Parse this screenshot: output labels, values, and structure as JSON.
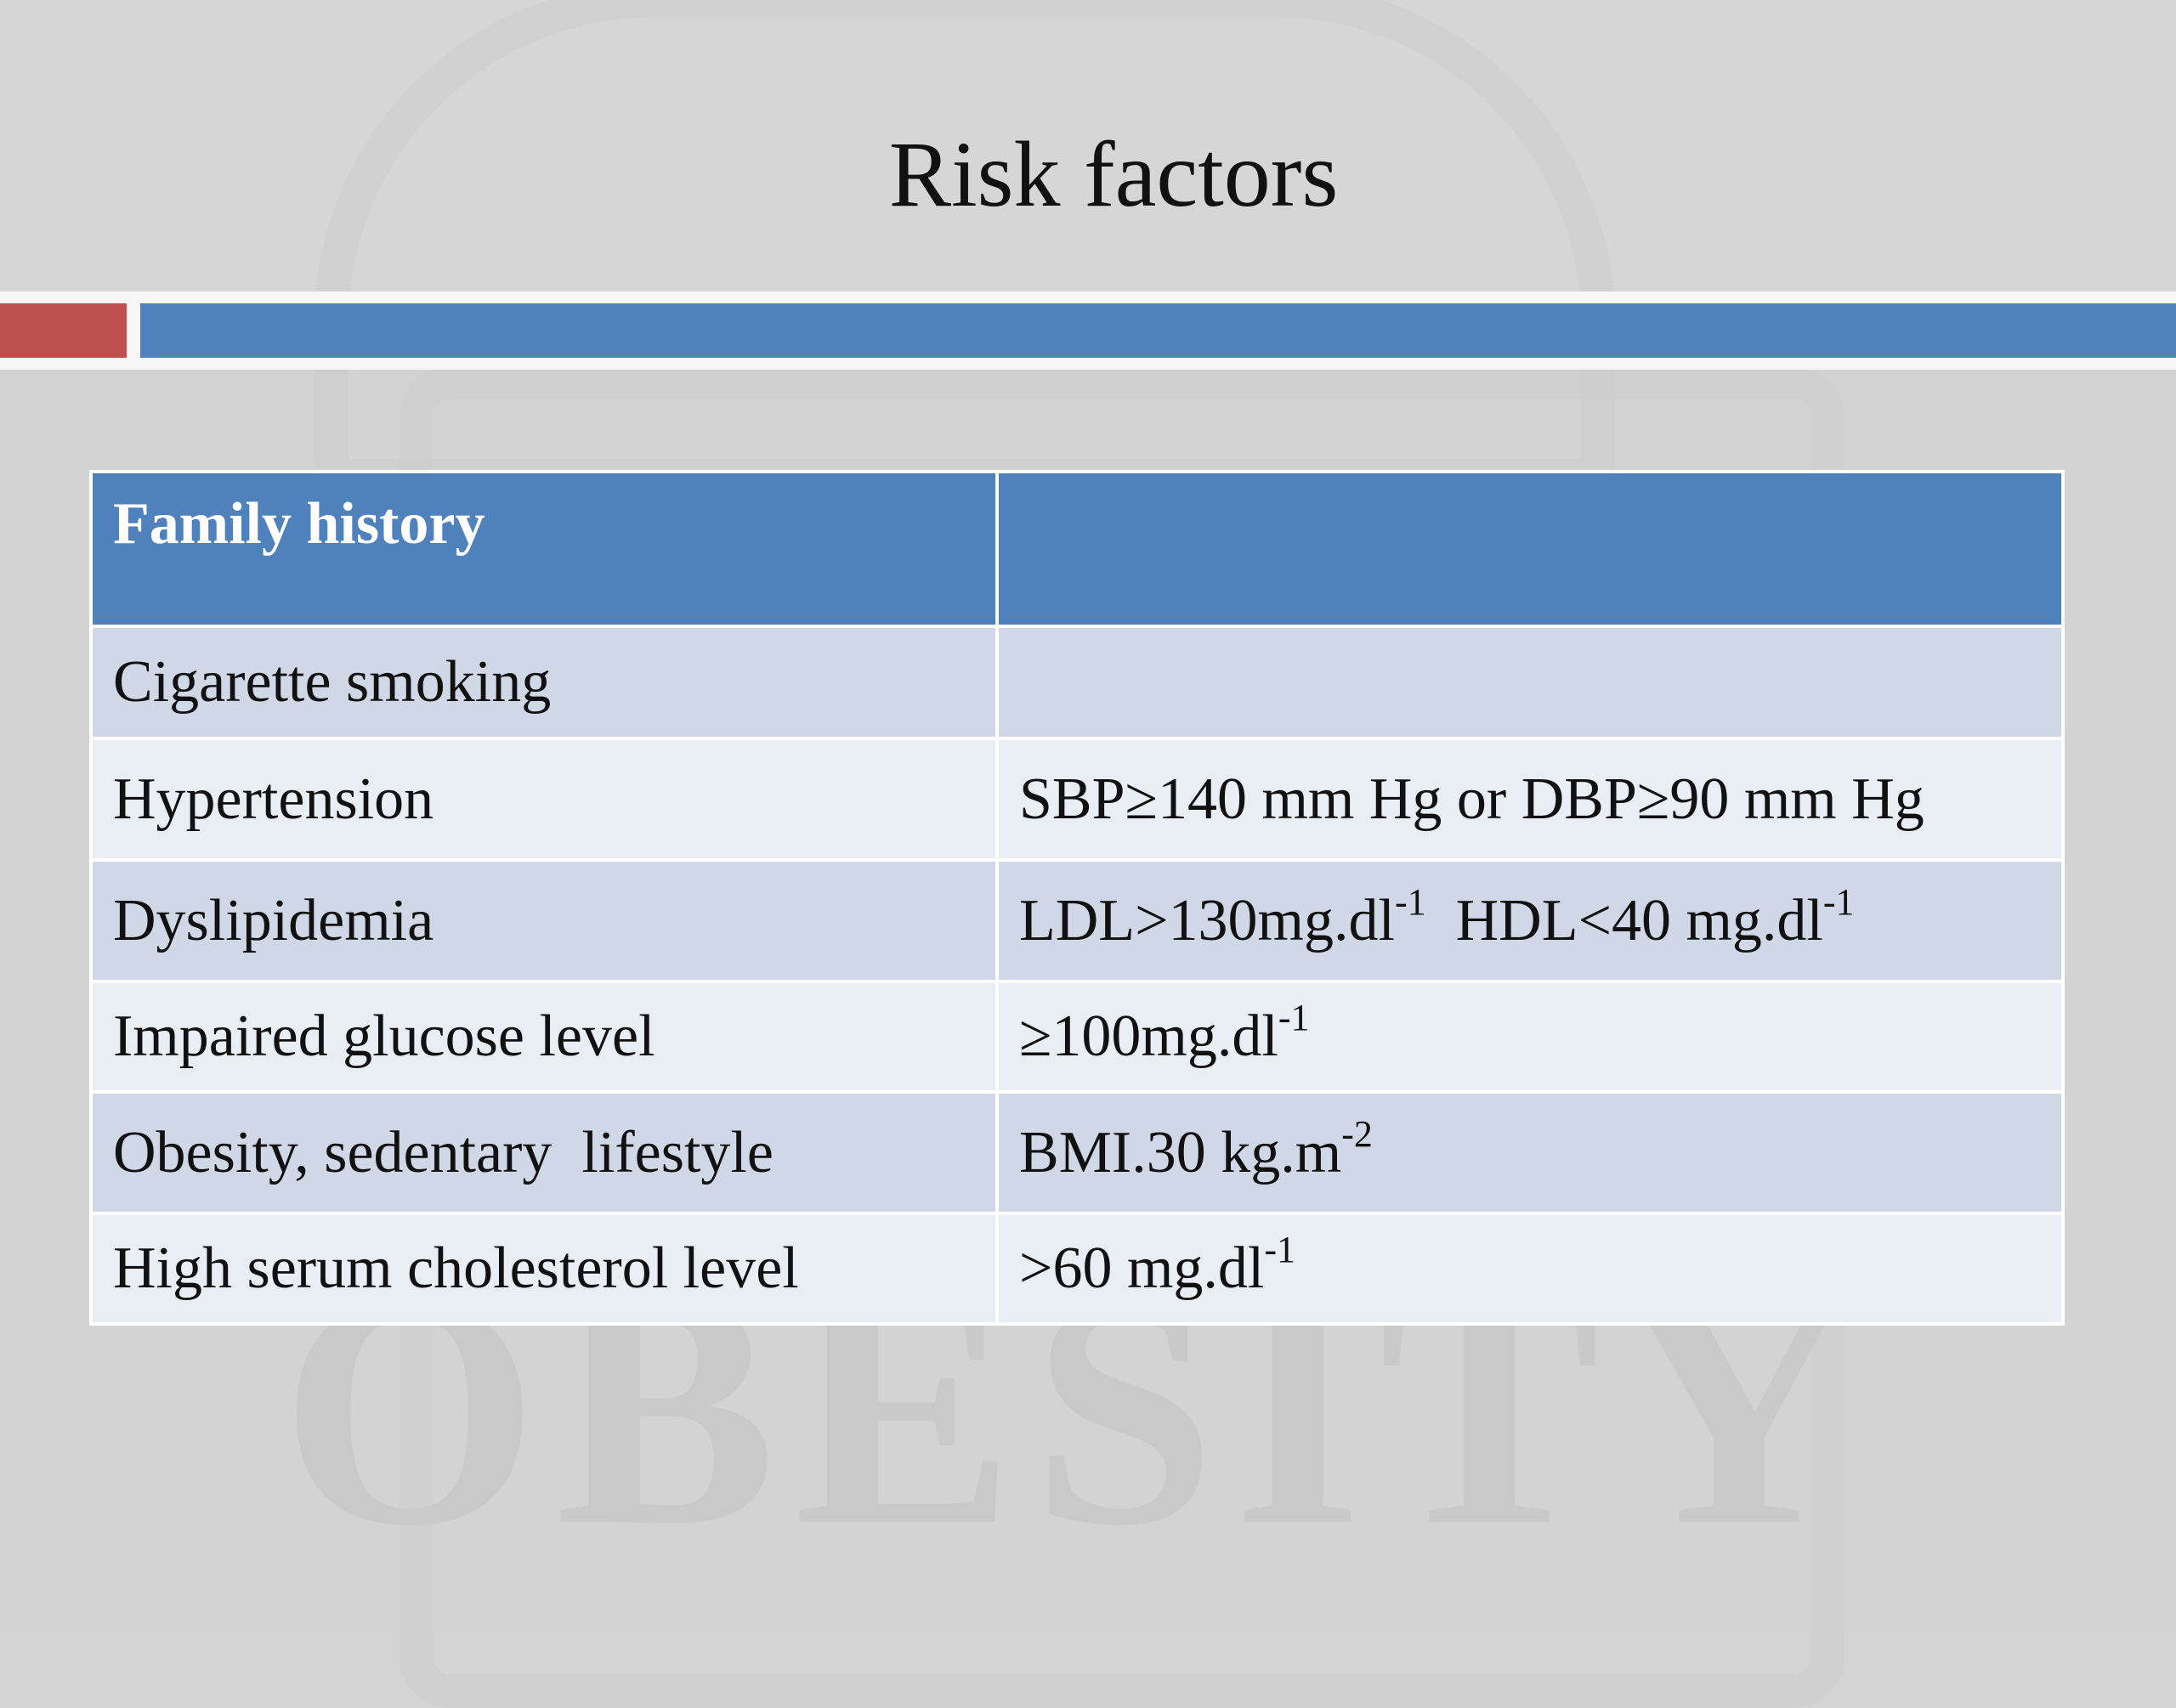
{
  "slide": {
    "title": "Risk factors",
    "watermark_text": "OBESITY"
  },
  "colors": {
    "accent_red": "#c0504d",
    "accent_blue": "#4f81bd",
    "table_header": "#4f81bd",
    "row_dark": "#d0d8e8",
    "row_light": "#e9edf4"
  },
  "table": {
    "header": {
      "col1": "Family history",
      "col2": ""
    },
    "rows": [
      {
        "factor": "Cigarette smoking",
        "criteria": "",
        "sup1": "",
        "criteria2": "",
        "sup2": ""
      },
      {
        "factor": "Hypertension",
        "criteria": "SBP≥140 mm Hg or DBP≥90 mm Hg",
        "sup1": "",
        "criteria2": "",
        "sup2": ""
      },
      {
        "factor": "Dyslipidemia",
        "criteria": "LDL>130mg.dl",
        "sup1": "-1",
        "criteria2": "  HDL<40 mg.dl",
        "sup2": "-1"
      },
      {
        "factor": "Impaired glucose level",
        "criteria": "≥100mg.dl",
        "sup1": "-1",
        "criteria2": "",
        "sup2": ""
      },
      {
        "factor": "Obesity, sedentary  lifestyle",
        "criteria": "BMI.30 kg.m",
        "sup1": "-2",
        "criteria2": "",
        "sup2": ""
      },
      {
        "factor": "High serum cholesterol level",
        "criteria": ">60 mg.dl",
        "sup1": "-1",
        "criteria2": "",
        "sup2": ""
      }
    ]
  }
}
